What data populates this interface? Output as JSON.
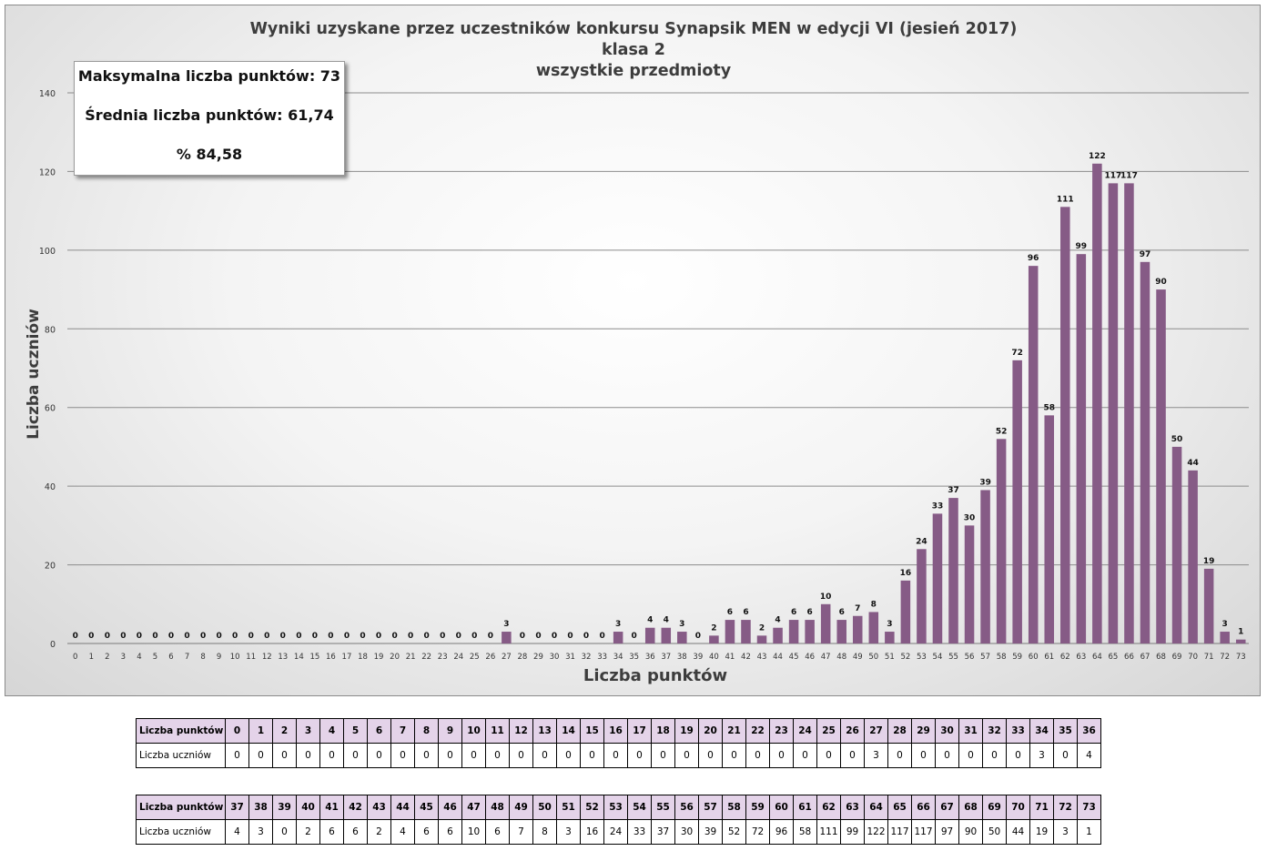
{
  "chart_data": {
    "type": "bar",
    "title": "Wyniki uzyskane przez uczestników konkursu Synapsik MEN w edycji VI (jesień 2017)",
    "subtitle_lines": [
      "klasa 2",
      "wszystkie przedmioty"
    ],
    "xlabel": "Liczba punktów",
    "ylabel": "Liczba uczniów",
    "ylim": [
      0,
      140
    ],
    "yticks": [
      0,
      20,
      40,
      60,
      80,
      100,
      120,
      140
    ],
    "grid": true,
    "bar_color": "#865b86",
    "categories": [
      "0",
      "1",
      "2",
      "3",
      "4",
      "5",
      "6",
      "7",
      "8",
      "9",
      "10",
      "11",
      "12",
      "13",
      "14",
      "15",
      "16",
      "17",
      "18",
      "19",
      "20",
      "21",
      "22",
      "23",
      "24",
      "25",
      "26",
      "27",
      "28",
      "29",
      "30",
      "31",
      "32",
      "33",
      "34",
      "35",
      "36",
      "37",
      "38",
      "39",
      "40",
      "41",
      "42",
      "43",
      "44",
      "45",
      "46",
      "47",
      "48",
      "49",
      "50",
      "51",
      "52",
      "53",
      "54",
      "55",
      "56",
      "57",
      "58",
      "59",
      "60",
      "61",
      "62",
      "63",
      "64",
      "65",
      "66",
      "67",
      "68",
      "69",
      "70",
      "71",
      "72",
      "73"
    ],
    "values": [
      0,
      0,
      0,
      0,
      0,
      0,
      0,
      0,
      0,
      0,
      0,
      0,
      0,
      0,
      0,
      0,
      0,
      0,
      0,
      0,
      0,
      0,
      0,
      0,
      0,
      0,
      0,
      3,
      0,
      0,
      0,
      0,
      0,
      0,
      3,
      0,
      4,
      4,
      3,
      0,
      2,
      6,
      6,
      2,
      4,
      6,
      6,
      10,
      6,
      7,
      8,
      3,
      16,
      24,
      33,
      37,
      30,
      39,
      52,
      72,
      96,
      58,
      111,
      99,
      122,
      117,
      117,
      97,
      90,
      50,
      44,
      19,
      3,
      1
    ]
  },
  "stats_box": {
    "max_points": "Maksymalna liczba punktów: 73",
    "average": "Średnia  liczba punktów: 61,74",
    "percent": "% 84,58"
  },
  "table": {
    "points_label": "Liczba punktów",
    "students_label": "Liczba uczniów"
  }
}
